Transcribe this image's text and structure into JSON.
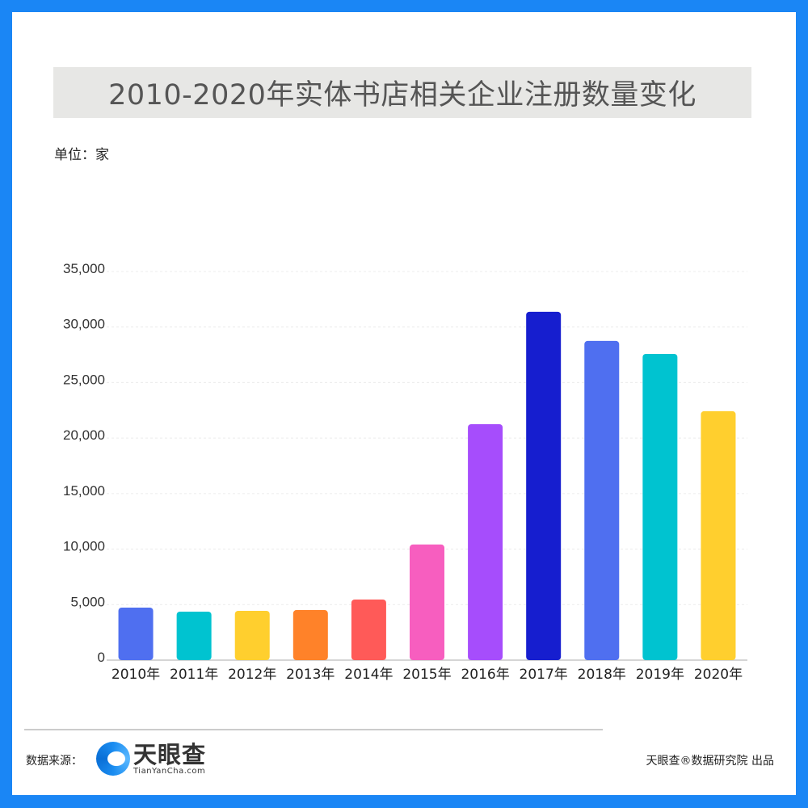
{
  "header": {
    "title": "2010-2020年实体书店相关企业注册数量变化",
    "unit": "单位：家"
  },
  "footer": {
    "source_label": "数据来源：",
    "logo_cn": "天眼查",
    "logo_en": "TianYanCha.com",
    "credit": "天眼查®数据研究院 出品"
  },
  "colors": {
    "border": "#1a86f5",
    "title_bg": "#e7e7e5"
  },
  "chart_data": {
    "type": "bar",
    "title": "2010-2020年实体书店相关企业注册数量变化",
    "xlabel": "",
    "ylabel": "单位：家",
    "ylim": [
      0,
      35000
    ],
    "yticks": [
      0,
      5000,
      10000,
      15000,
      20000,
      25000,
      30000,
      35000
    ],
    "ytick_labels": [
      "0",
      "5,000",
      "10,000",
      "15,000",
      "20,000",
      "25,000",
      "30,000",
      "35,000"
    ],
    "grid": true,
    "categories": [
      "2010年",
      "2011年",
      "2012年",
      "2013年",
      "2014年",
      "2015年",
      "2016年",
      "2017年",
      "2018年",
      "2019年",
      "2020年"
    ],
    "values": [
      4730,
      4370,
      4440,
      4510,
      5460,
      10410,
      21250,
      31370,
      28750,
      27580,
      22420
    ],
    "bar_colors": [
      "#4f6ff0",
      "#00c3d0",
      "#ffcf2e",
      "#ff8229",
      "#ff5a58",
      "#f75ebf",
      "#a64dfc",
      "#161ecf",
      "#4f6ff0",
      "#00c3d0",
      "#ffcf2e"
    ]
  }
}
